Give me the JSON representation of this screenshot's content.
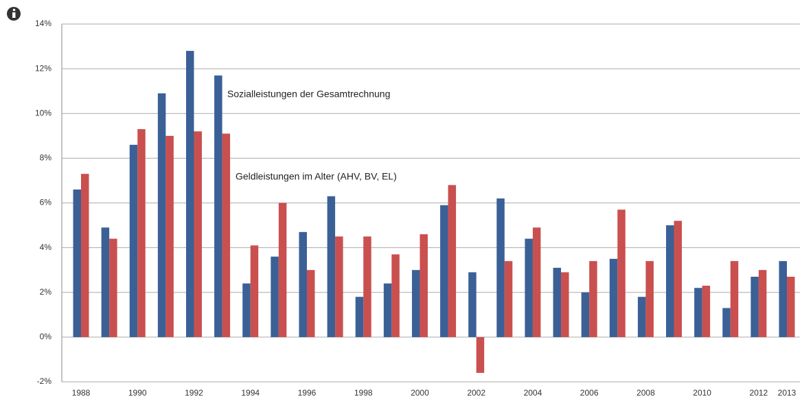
{
  "chart_data": {
    "type": "bar",
    "categories": [
      "1988",
      null,
      "1990",
      null,
      "1992",
      null,
      "1994",
      null,
      "1996",
      null,
      "1998",
      null,
      "2000",
      null,
      "2002",
      null,
      "2004",
      null,
      "2006",
      null,
      "2008",
      null,
      "2010",
      null,
      "2012",
      "2013"
    ],
    "series": [
      {
        "name": "Sozialleistungen der Gesamtrechnung",
        "color": "#3b6096",
        "values": [
          6.6,
          4.9,
          8.6,
          10.9,
          12.8,
          11.7,
          2.4,
          3.6,
          4.7,
          6.3,
          1.8,
          2.4,
          3.0,
          5.9,
          2.9,
          6.2,
          4.4,
          3.1,
          2.0,
          3.5,
          1.8,
          5.0,
          2.2,
          1.3,
          2.7,
          3.4
        ]
      },
      {
        "name": "Geldleistungen im Alter (AHV, BV, EL)",
        "color": "#c9504f",
        "values": [
          7.3,
          4.4,
          9.3,
          9.0,
          9.2,
          9.1,
          4.1,
          6.0,
          3.0,
          4.5,
          4.5,
          3.7,
          4.6,
          6.8,
          -1.6,
          3.4,
          4.9,
          2.9,
          3.4,
          5.7,
          3.4,
          5.2,
          2.3,
          3.4,
          3.0,
          2.7
        ]
      }
    ],
    "ylim": [
      -2,
      14
    ],
    "yticks": [
      {
        "value": -2,
        "label": "-2%"
      },
      {
        "value": 0,
        "label": "0%"
      },
      {
        "value": 2,
        "label": "2%"
      },
      {
        "value": 4,
        "label": "4%"
      },
      {
        "value": 6,
        "label": "6%"
      },
      {
        "value": 8,
        "label": "8%"
      },
      {
        "value": 10,
        "label": "10%"
      },
      {
        "value": 12,
        "label": "12%"
      },
      {
        "value": 14,
        "label": "14%"
      }
    ],
    "grid": true
  }
}
